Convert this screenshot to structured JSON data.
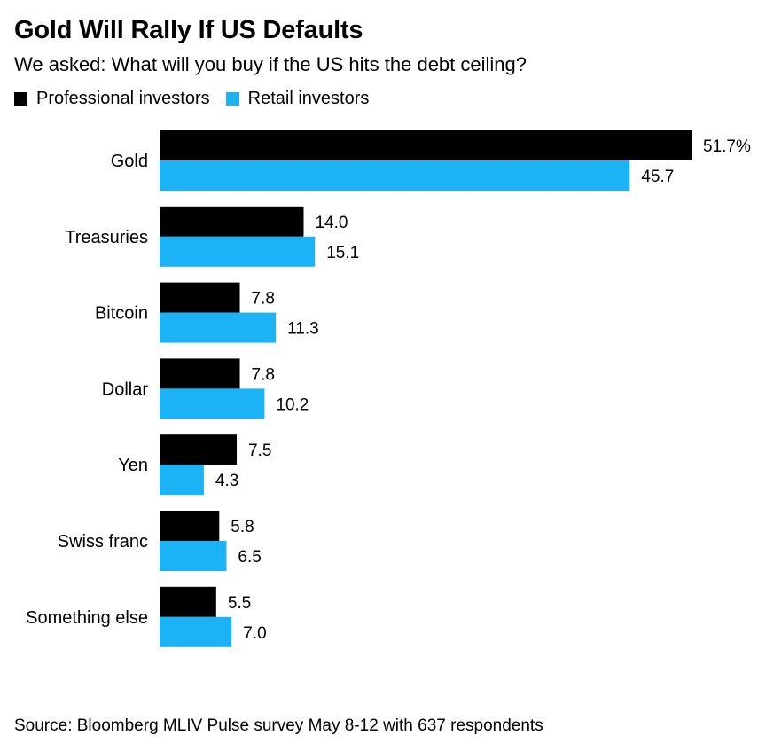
{
  "title": "Gold Will Rally If US Defaults",
  "subtitle": "We asked: What will you buy if the US hits the debt ceiling?",
  "source": "Source: Bloomberg MLIV Pulse survey May 8-12 with 637 respondents",
  "colors": {
    "professional": "#000000",
    "retail": "#1bb3f5"
  },
  "chart_data": {
    "type": "bar",
    "orientation": "horizontal",
    "categories": [
      "Gold",
      "Treasuries",
      "Bitcoin",
      "Dollar",
      "Yen",
      "Swiss franc",
      "Something else"
    ],
    "series": [
      {
        "name": "Professional investors",
        "values": [
          51.7,
          14.0,
          7.8,
          7.8,
          7.5,
          5.8,
          5.5
        ],
        "labels": [
          "51.7%",
          "14.0",
          "7.8",
          "7.8",
          "7.5",
          "5.8",
          "5.5"
        ]
      },
      {
        "name": "Retail investors",
        "values": [
          45.7,
          15.1,
          11.3,
          10.2,
          4.3,
          6.5,
          7.0
        ],
        "labels": [
          "45.7",
          "15.1",
          "11.3",
          "10.2",
          "4.3",
          "6.5",
          "7.0"
        ]
      }
    ],
    "xlim": [
      0,
      51.7
    ],
    "grid": false,
    "legend": "top-left"
  }
}
